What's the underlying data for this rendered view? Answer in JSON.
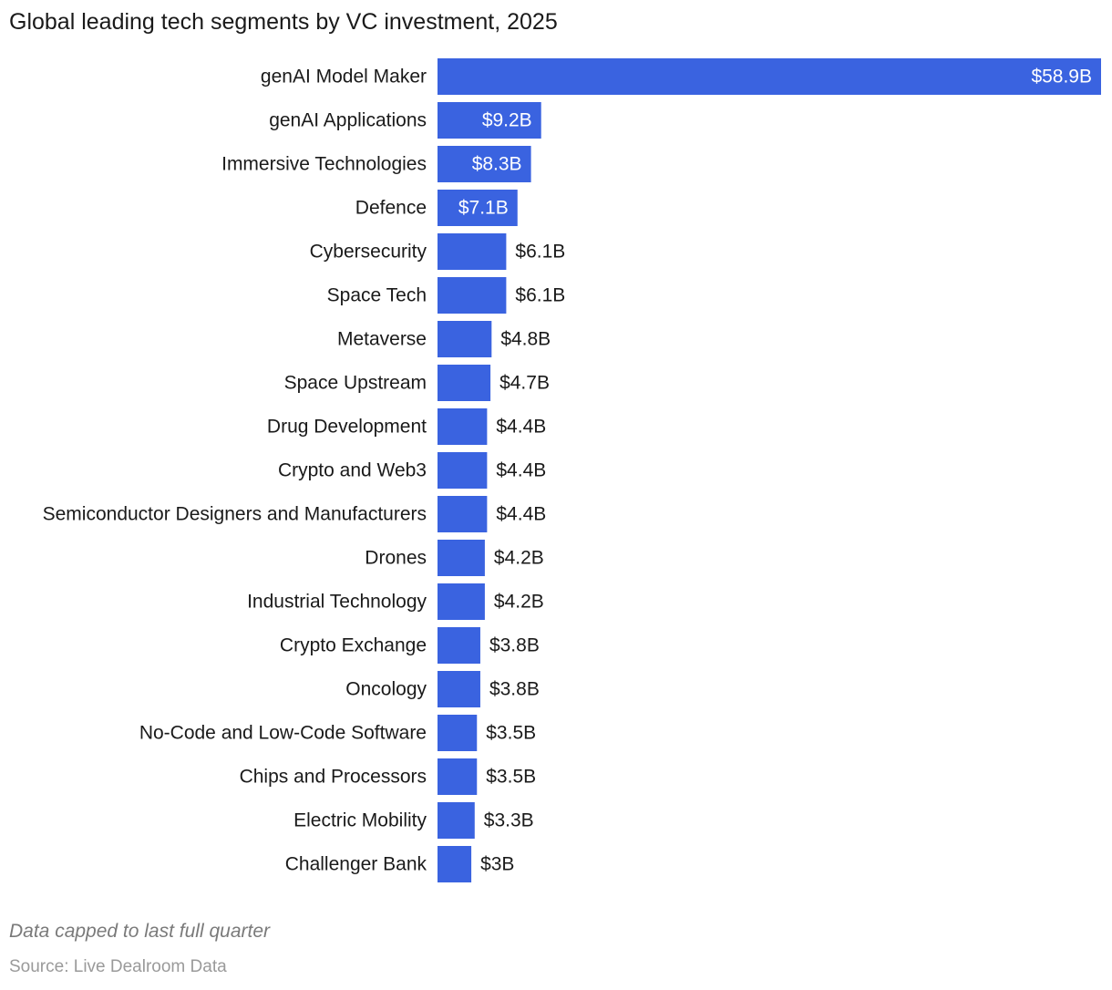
{
  "chart_data": {
    "type": "bar",
    "orientation": "horizontal",
    "title": "Global leading tech segments by VC investment, 2025",
    "value_prefix": "$",
    "value_suffix": "B",
    "categories": [
      "genAI Model Maker",
      "genAI Applications",
      "Immersive Technologies",
      "Defence",
      "Cybersecurity",
      "Space Tech",
      "Metaverse",
      "Space Upstream",
      "Drug Development",
      "Crypto and Web3",
      "Semiconductor Designers and Manufacturers",
      "Drones",
      "Industrial Technology",
      "Crypto Exchange",
      "Oncology",
      "No-Code and Low-Code Software",
      "Chips and Processors",
      "Electric Mobility",
      "Challenger Bank"
    ],
    "values": [
      58.9,
      9.2,
      8.3,
      7.1,
      6.1,
      6.1,
      4.8,
      4.7,
      4.4,
      4.4,
      4.4,
      4.2,
      4.2,
      3.8,
      3.8,
      3.5,
      3.5,
      3.3,
      3.0
    ],
    "value_labels": [
      "$58.9B",
      "$9.2B",
      "$8.3B",
      "$7.1B",
      "$6.1B",
      "$6.1B",
      "$4.8B",
      "$4.7B",
      "$4.4B",
      "$4.4B",
      "$4.4B",
      "$4.2B",
      "$4.2B",
      "$3.8B",
      "$3.8B",
      "$3.5B",
      "$3.5B",
      "$3.3B",
      "$3B"
    ],
    "xlim": [
      0,
      58.9
    ],
    "grid": false,
    "legend": "none",
    "xlabel": "",
    "ylabel": ""
  },
  "footnote": "Data capped to last full quarter",
  "source": "Source: Live Dealroom Data",
  "colors": {
    "bar": "#3a63e0",
    "label_inside": "#ffffff",
    "label_outside": "#1a1a1a",
    "category_text": "#1a1a1a"
  }
}
